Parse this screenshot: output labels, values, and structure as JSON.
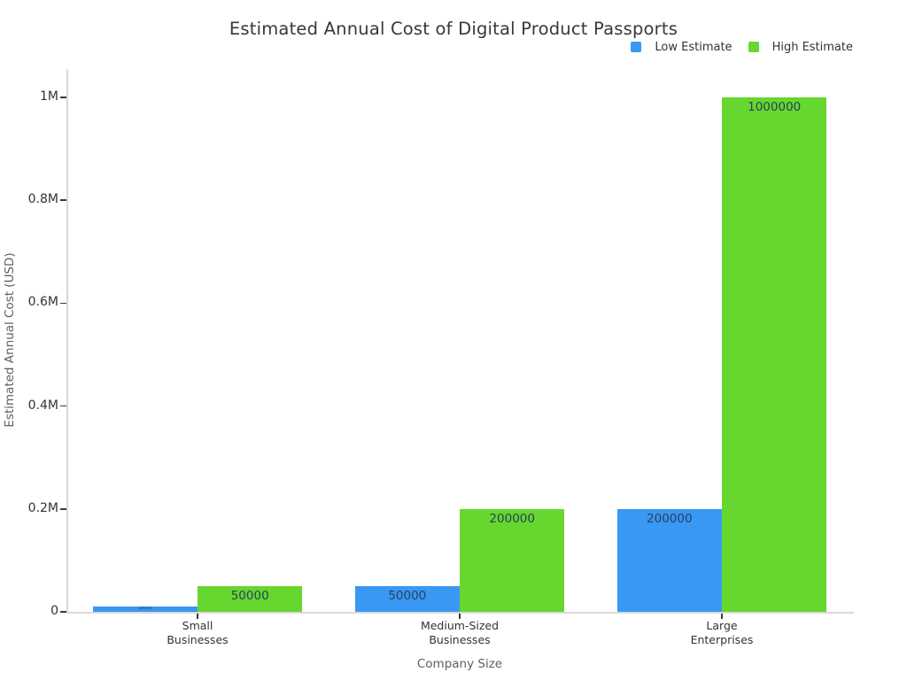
{
  "title": "Estimated Annual Cost of Digital Product Passports",
  "legend": {
    "items": [
      {
        "label": "Low Estimate",
        "color": "#3898F3"
      },
      {
        "label": "High Estimate",
        "color": "#66D72E"
      }
    ]
  },
  "chart_data": {
    "type": "bar",
    "title": "Estimated Annual Cost of Digital Product Passports",
    "xlabel": "Company Size",
    "ylabel": "Estimated Annual Cost (USD)",
    "categories": [
      "Small Businesses",
      "Medium-Sized Businesses",
      "Large Enterprises"
    ],
    "category_lines": [
      [
        "Small",
        "Businesses"
      ],
      [
        "Medium-Sized",
        "Businesses"
      ],
      [
        "Large",
        "Enterprises"
      ]
    ],
    "series": [
      {
        "name": "Low Estimate",
        "color": "#3898F3",
        "values": [
          10000,
          50000,
          200000
        ]
      },
      {
        "name": "High Estimate",
        "color": "#66D72E",
        "values": [
          50000,
          200000,
          1000000
        ]
      }
    ],
    "bar_labels": [
      [
        "10000",
        "50000",
        "200000"
      ],
      [
        "50000",
        "200000",
        "1000000"
      ]
    ],
    "ylim": [
      0,
      1060000
    ],
    "yticks": [
      {
        "value": 0,
        "label": "0"
      },
      {
        "value": 200000,
        "label": "0.2M"
      },
      {
        "value": 400000,
        "label": "0.4M"
      },
      {
        "value": 600000,
        "label": "0.6M"
      },
      {
        "value": 800000,
        "label": "0.8M"
      },
      {
        "value": 1000000,
        "label": "1M"
      }
    ],
    "grid": false,
    "legend_position": "top-right"
  },
  "colors": {
    "low": "#3898F3",
    "high": "#66D72E",
    "axis_line": "#D9D9D9",
    "tick_mark": "#3A3A3A",
    "tick_text": "#333333",
    "axis_title_text": "#5F5F5F",
    "title_text": "#383838",
    "bar_label_text": "#2A3F5F",
    "background": "#FFFFFF"
  }
}
